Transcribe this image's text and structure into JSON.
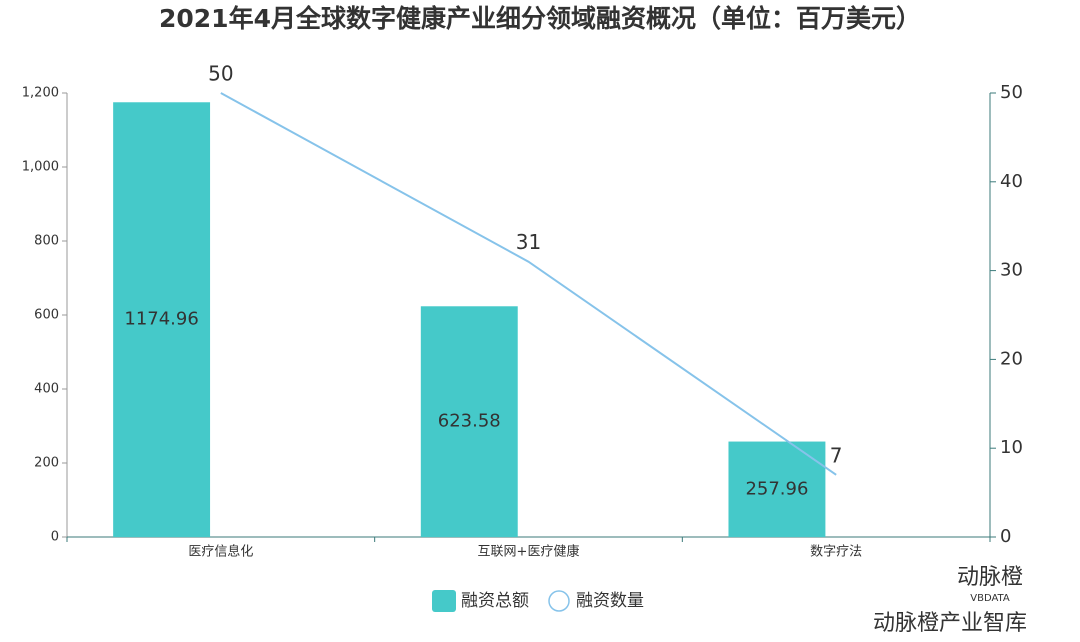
{
  "chart_data": {
    "type": "bar",
    "title": "2021年4月全球数字健康产业细分领域融资概况（单位：百万美元）",
    "categories": [
      "医疗信息化",
      "互联网+医疗健康",
      "数字疗法"
    ],
    "series": [
      {
        "name": "融资总额",
        "type": "bar",
        "color": "#45c9c9",
        "values": [
          1174.96,
          623.58,
          257.96
        ]
      },
      {
        "name": "融资数量",
        "type": "line",
        "axis": "y2",
        "color": "#86c3ea",
        "values": [
          50,
          31,
          7
        ]
      }
    ],
    "ylim": [
      0,
      1200
    ],
    "yticks": [
      0,
      200,
      400,
      600,
      800,
      {
        "value": 1000,
        "label": "1,000"
      },
      {
        "value": 1200,
        "label": "1,200"
      }
    ],
    "y2lim": [
      0,
      50
    ],
    "y2ticks": [
      0,
      10,
      20,
      30,
      40,
      50
    ],
    "legend": "bottom",
    "watermark": [
      "动脉橙",
      "VBDATA",
      "动脉橙产业智库"
    ]
  }
}
